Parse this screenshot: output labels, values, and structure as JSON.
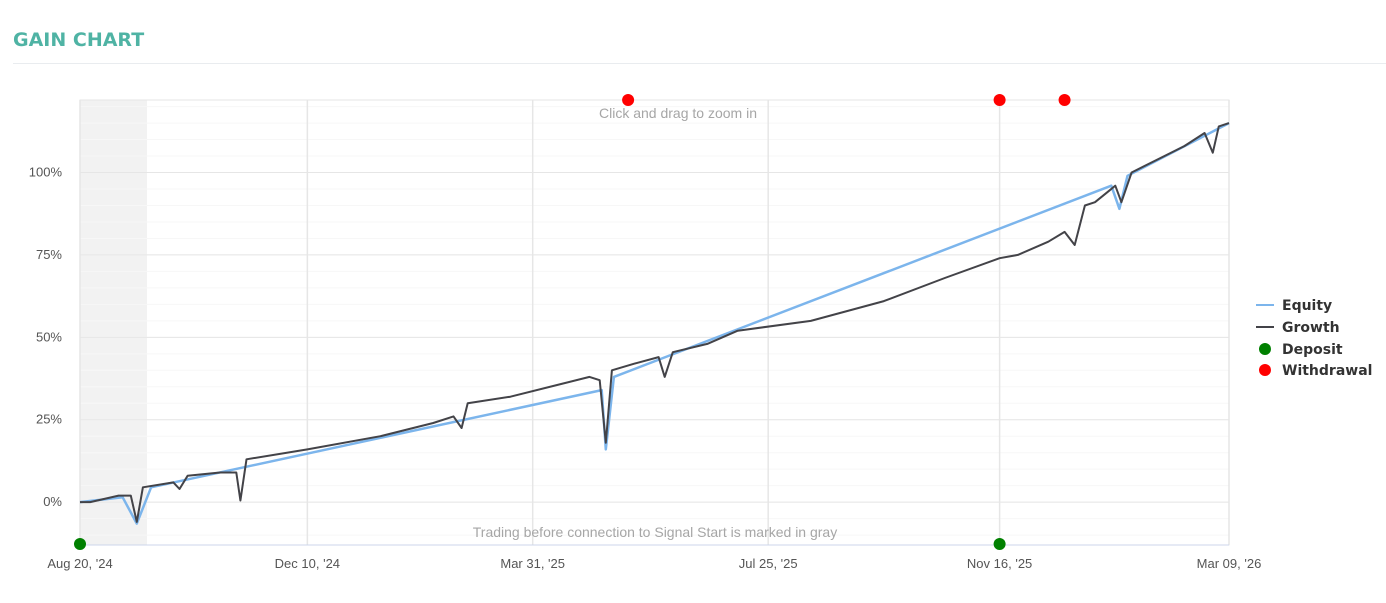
{
  "page": {
    "title": "GAIN CHART"
  },
  "chart_data": {
    "type": "line",
    "y_unit": "%",
    "ylim": [
      -13,
      122
    ],
    "y_ticks": [
      0,
      25,
      50,
      75,
      100
    ],
    "y_tick_labels": [
      "0%",
      "25%",
      "50%",
      "75%",
      "100%"
    ],
    "xlim": [
      "2024-08-20",
      "2026-03-09"
    ],
    "x_ticks": [
      "2024-08-20",
      "2024-12-10",
      "2025-03-31",
      "2025-07-25",
      "2025-11-16",
      "2026-03-09"
    ],
    "x_tick_labels": [
      "Aug 20, '24",
      "Dec 10, '24",
      "Mar 31, '25",
      "Jul 25, '25",
      "Nov 16, '25",
      "Mar 09, '26"
    ],
    "grid": true,
    "legend_position": "right",
    "zoom_hint": "Click and drag to zoom in",
    "gray_note": "Trading before connection to Signal Start is marked in gray",
    "gray_region": [
      "2024-08-20",
      "2024-09-22"
    ],
    "colors": {
      "equity": "#7cb5ec",
      "growth": "#434348",
      "deposit": "#008000",
      "withdrawal": "#ff0000",
      "gray_band": "#f2f2f2"
    },
    "series": [
      {
        "name": "Equity",
        "x": [
          "2024-08-20",
          "2024-09-10",
          "2024-09-17",
          "2024-09-24",
          "2025-05-04",
          "2025-05-06",
          "2025-05-10",
          "2026-01-10",
          "2026-01-14",
          "2026-01-18",
          "2026-03-09"
        ],
        "values": [
          0,
          1.5,
          -6.5,
          4.5,
          34,
          16,
          38,
          96,
          89,
          99,
          115
        ]
      },
      {
        "name": "Growth",
        "x": [
          "2024-08-20",
          "2024-08-25",
          "2024-09-01",
          "2024-09-08",
          "2024-09-14",
          "2024-09-17",
          "2024-09-20",
          "2024-10-05",
          "2024-10-08",
          "2024-10-12",
          "2024-10-28",
          "2024-11-05",
          "2024-11-07",
          "2024-11-10",
          "2024-12-10",
          "2025-01-15",
          "2025-02-10",
          "2025-02-20",
          "2025-02-24",
          "2025-02-27",
          "2025-03-20",
          "2025-04-15",
          "2025-04-28",
          "2025-05-03",
          "2025-05-06",
          "2025-05-09",
          "2025-05-20",
          "2025-06-01",
          "2025-06-04",
          "2025-06-08",
          "2025-06-25",
          "2025-07-10",
          "2025-08-15",
          "2025-09-20",
          "2025-10-20",
          "2025-11-16",
          "2025-11-25",
          "2025-12-10",
          "2025-12-18",
          "2025-12-23",
          "2025-12-28",
          "2026-01-02",
          "2026-01-08",
          "2026-01-12",
          "2026-01-15",
          "2026-01-20",
          "2026-02-15",
          "2026-02-25",
          "2026-03-01",
          "2026-03-04",
          "2026-03-09"
        ],
        "values": [
          0,
          0,
          1,
          2,
          2,
          -6,
          4.5,
          6,
          4,
          8,
          9,
          9,
          0.5,
          13,
          16,
          20,
          24,
          26,
          22.5,
          30,
          32,
          36,
          38,
          37,
          18,
          40,
          42,
          44,
          38,
          45.5,
          48,
          52,
          55,
          61,
          68,
          74,
          75,
          79,
          82,
          78,
          90,
          91,
          94,
          96,
          91,
          100,
          108,
          112,
          106,
          114,
          115
        ]
      },
      {
        "name": "Deposit",
        "markers": [
          "2024-08-20",
          "2025-11-16"
        ]
      },
      {
        "name": "Withdrawal",
        "markers": [
          "2025-05-17",
          "2025-11-16",
          "2025-12-18"
        ]
      }
    ]
  }
}
